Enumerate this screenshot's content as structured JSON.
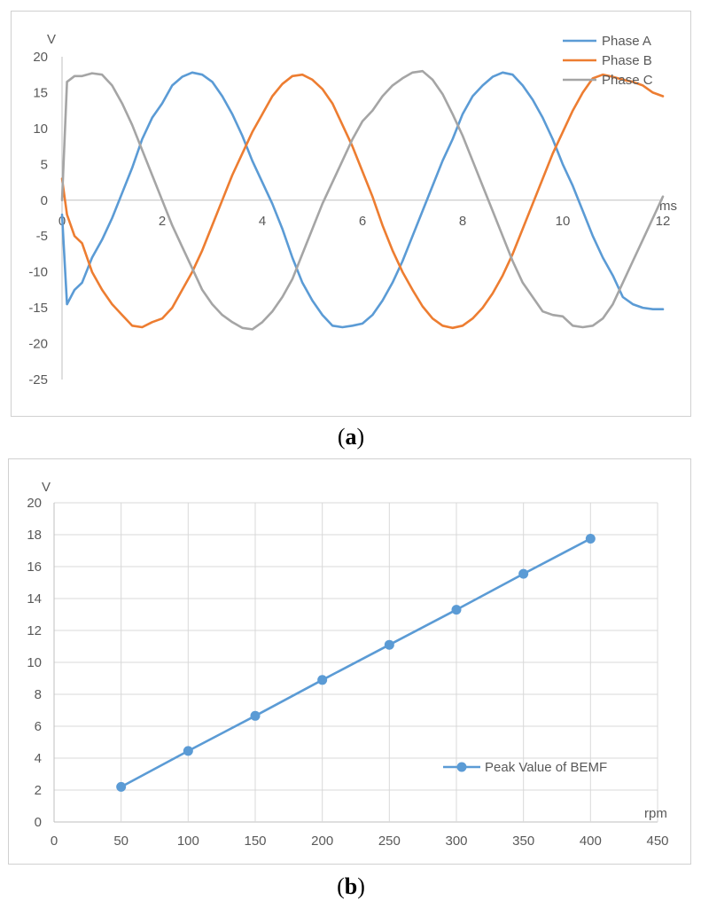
{
  "captions": {
    "a": "a",
    "b": "b"
  },
  "chart_data": [
    {
      "id": "a",
      "type": "line",
      "xlabel": "ms",
      "ylabel": "V",
      "xlim": [
        0,
        12
      ],
      "ylim": [
        -25,
        20
      ],
      "x_ticks": [
        0,
        2,
        4,
        6,
        8,
        10,
        12
      ],
      "y_ticks": [
        20,
        15,
        10,
        5,
        0,
        -5,
        -10,
        -15,
        -20,
        -25
      ],
      "x_tick_labels": [
        "0",
        "2",
        "4",
        "6",
        "8",
        "10",
        "12"
      ],
      "y_tick_labels": [
        "20",
        "15",
        "10",
        "5",
        "0",
        "-5",
        "-10",
        "-15",
        "-20",
        "-25"
      ],
      "grid": false,
      "legend_position": "top-right",
      "series": [
        {
          "name": "Phase A",
          "color": "#5b9bd5",
          "x": [
            0,
            0.1,
            0.25,
            0.4,
            0.6,
            0.8,
            1.0,
            1.2,
            1.4,
            1.6,
            1.8,
            2.0,
            2.2,
            2.4,
            2.6,
            2.8,
            3.0,
            3.2,
            3.4,
            3.6,
            3.8,
            4.0,
            4.2,
            4.4,
            4.6,
            4.8,
            5.0,
            5.2,
            5.4,
            5.6,
            5.8,
            6.0,
            6.2,
            6.4,
            6.6,
            6.8,
            7.0,
            7.2,
            7.4,
            7.6,
            7.8,
            8.0,
            8.2,
            8.4,
            8.6,
            8.8,
            9.0,
            9.2,
            9.4,
            9.6,
            9.8,
            10.0,
            10.2,
            10.4,
            10.6,
            10.8,
            11.0,
            11.2,
            11.4,
            11.6,
            11.8,
            12.0
          ],
          "values": [
            -2,
            -14.5,
            -12.5,
            -11.5,
            -8,
            -5.5,
            -2.5,
            1,
            4.5,
            8.5,
            11.5,
            13.5,
            16,
            17.2,
            17.8,
            17.5,
            16.5,
            14.5,
            12,
            9,
            5.5,
            2.5,
            -0.5,
            -4,
            -8,
            -11.5,
            -14,
            -16,
            -17.5,
            -17.7,
            -17.5,
            -17.2,
            -16,
            -14,
            -11.5,
            -8.5,
            -5,
            -1.5,
            2,
            5.5,
            8.5,
            12,
            14.5,
            16,
            17.2,
            17.8,
            17.5,
            16,
            14,
            11.5,
            8.5,
            5,
            2,
            -1.5,
            -5,
            -8,
            -10.5,
            -13.5,
            -14.5,
            -15,
            -15.2,
            -15.2
          ]
        },
        {
          "name": "Phase B",
          "color": "#ed7d31",
          "x": [
            0,
            0.1,
            0.25,
            0.4,
            0.6,
            0.8,
            1.0,
            1.2,
            1.4,
            1.6,
            1.8,
            2.0,
            2.2,
            2.4,
            2.6,
            2.8,
            3.0,
            3.2,
            3.4,
            3.6,
            3.8,
            4.0,
            4.2,
            4.4,
            4.6,
            4.8,
            5.0,
            5.2,
            5.4,
            5.6,
            5.8,
            6.0,
            6.2,
            6.4,
            6.6,
            6.8,
            7.0,
            7.2,
            7.4,
            7.6,
            7.8,
            8.0,
            8.2,
            8.4,
            8.6,
            8.8,
            9.0,
            9.2,
            9.4,
            9.6,
            9.8,
            10.0,
            10.2,
            10.4,
            10.6,
            10.8,
            11.0,
            11.2,
            11.4,
            11.6,
            11.8,
            12.0
          ],
          "values": [
            3,
            -2,
            -5,
            -6,
            -10,
            -12.5,
            -14.5,
            -16,
            -17.5,
            -17.7,
            -17,
            -16.5,
            -15,
            -12.5,
            -10,
            -7,
            -3.5,
            0,
            3.5,
            6.5,
            9.5,
            12,
            14.5,
            16.2,
            17.3,
            17.5,
            16.8,
            15.5,
            13.5,
            10.5,
            7.5,
            4,
            0.5,
            -3.5,
            -7,
            -10,
            -12.5,
            -14.8,
            -16.5,
            -17.5,
            -17.8,
            -17.5,
            -16.5,
            -15,
            -13,
            -10.5,
            -7.5,
            -4,
            -0.5,
            3,
            6.5,
            9.5,
            12.5,
            15,
            17,
            17.5,
            17.2,
            16.8,
            16.5,
            16,
            15,
            14.5
          ]
        },
        {
          "name": "Phase C",
          "color": "#a5a5a5",
          "x": [
            0,
            0.1,
            0.25,
            0.4,
            0.6,
            0.8,
            1.0,
            1.2,
            1.4,
            1.6,
            1.8,
            2.0,
            2.2,
            2.4,
            2.6,
            2.8,
            3.0,
            3.2,
            3.4,
            3.6,
            3.8,
            4.0,
            4.2,
            4.4,
            4.6,
            4.8,
            5.0,
            5.2,
            5.4,
            5.6,
            5.8,
            6.0,
            6.2,
            6.4,
            6.6,
            6.8,
            7.0,
            7.2,
            7.4,
            7.6,
            7.8,
            8.0,
            8.2,
            8.4,
            8.6,
            8.8,
            9.0,
            9.2,
            9.4,
            9.6,
            9.8,
            10.0,
            10.2,
            10.4,
            10.6,
            10.8,
            11.0,
            11.2,
            11.4,
            11.6,
            11.8,
            12.0
          ],
          "values": [
            0,
            16.5,
            17.3,
            17.3,
            17.7,
            17.5,
            16,
            13.5,
            10.5,
            7,
            3.5,
            0,
            -3.5,
            -6.5,
            -9.5,
            -12.5,
            -14.5,
            -16,
            -17,
            -17.8,
            -18,
            -17,
            -15.5,
            -13.5,
            -11,
            -7.5,
            -4,
            -0.5,
            2.5,
            5.5,
            8.5,
            11,
            12.5,
            14.5,
            16,
            17,
            17.8,
            18,
            16.8,
            14.8,
            12,
            9,
            5.5,
            2,
            -1.5,
            -5,
            -8.5,
            -11.5,
            -13.5,
            -15.5,
            -16,
            -16.2,
            -17.5,
            -17.7,
            -17.5,
            -16.5,
            -14.5,
            -11.5,
            -8.5,
            -5.5,
            -2.5,
            0.5
          ]
        }
      ]
    },
    {
      "id": "b",
      "type": "line",
      "xlabel": "rpm",
      "ylabel": "V",
      "xlim": [
        0,
        450
      ],
      "ylim": [
        0,
        20
      ],
      "x_ticks": [
        0,
        50,
        100,
        150,
        200,
        250,
        300,
        350,
        400,
        450
      ],
      "y_ticks": [
        0,
        2,
        4,
        6,
        8,
        10,
        12,
        14,
        16,
        18,
        20
      ],
      "x_tick_labels": [
        "0",
        "50",
        "100",
        "150",
        "200",
        "250",
        "300",
        "350",
        "400",
        "450"
      ],
      "y_tick_labels": [
        "0",
        "2",
        "4",
        "6",
        "8",
        "10",
        "12",
        "14",
        "16",
        "18",
        "20"
      ],
      "grid": true,
      "legend_position": "bottom-right",
      "series": [
        {
          "name": "Peak Value of BEMF",
          "color": "#5b9bd5",
          "x": [
            50,
            100,
            150,
            200,
            250,
            300,
            350,
            400
          ],
          "values": [
            2.2,
            4.45,
            6.65,
            8.9,
            11.1,
            13.3,
            15.55,
            17.75
          ]
        }
      ]
    }
  ]
}
